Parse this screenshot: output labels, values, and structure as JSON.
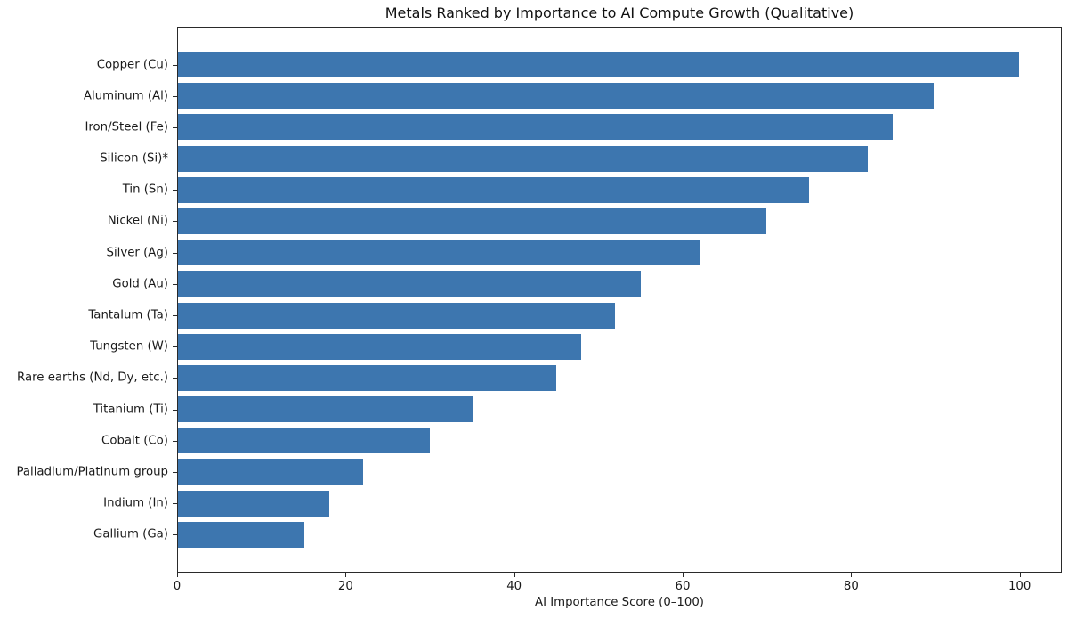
{
  "figure": {
    "background": "#ffffff",
    "title": "Metals Ranked by Importance to AI Compute Growth (Qualitative)"
  },
  "chart_data": {
    "type": "bar",
    "orientation": "horizontal",
    "title": "Metals Ranked by Importance to AI Compute Growth (Qualitative)",
    "xlabel": "AI Importance Score (0–100)",
    "ylabel": "",
    "categories": [
      "Copper (Cu)",
      "Aluminum (Al)",
      "Iron/Steel (Fe)",
      "Silicon (Si)*",
      "Tin (Sn)",
      "Nickel (Ni)",
      "Silver (Ag)",
      "Gold (Au)",
      "Tantalum (Ta)",
      "Tungsten (W)",
      "Rare earths (Nd, Dy, etc.)",
      "Titanium (Ti)",
      "Cobalt (Co)",
      "Palladium/Platinum group",
      "Indium (In)",
      "Gallium (Ga)"
    ],
    "values": [
      100,
      90,
      85,
      82,
      75,
      70,
      62,
      55,
      52,
      48,
      45,
      35,
      30,
      22,
      18,
      15
    ],
    "xlim": [
      0,
      105
    ],
    "xticks": [
      0,
      20,
      40,
      60,
      80,
      100
    ],
    "bar_color": "#3d76af",
    "axis_color": "#2a2a2a",
    "grid": false,
    "legend": null
  }
}
